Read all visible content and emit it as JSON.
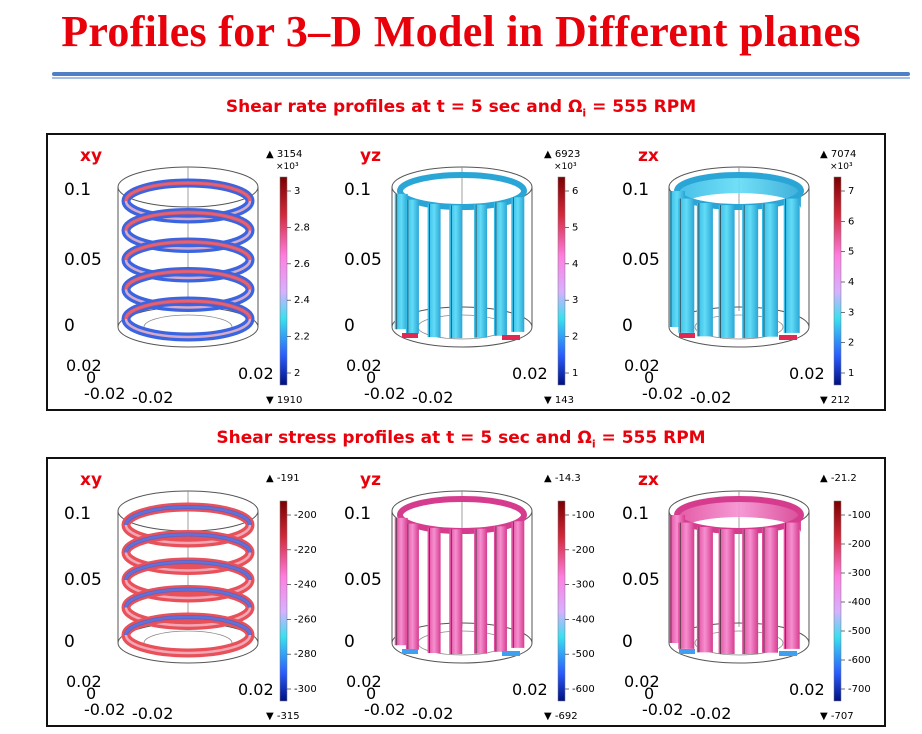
{
  "title": "Profiles for 3–D Model in Different planes",
  "sections": [
    {
      "subtitle_pre": "Shear rate profiles at t = 5 sec and Ω",
      "subtitle_sub": "i",
      "subtitle_post": " = 555 RPM",
      "plots": [
        {
          "plane": "xy",
          "kind": "helix",
          "max": "3154",
          "min": "1910",
          "exp": "×10³",
          "ticks": [
            "3",
            "2.8",
            "2.6",
            "2.4",
            "2.2",
            "2"
          ],
          "z_ticks": [
            "0.1",
            "0.05",
            "0"
          ],
          "xy_ticks": [
            "0.02",
            "0",
            "-0.02",
            "-0.02",
            "0.02"
          ]
        },
        {
          "plane": "yz",
          "kind": "slats",
          "max": "6923",
          "min": "143",
          "exp": "×10³",
          "ticks": [
            "6",
            "5",
            "4",
            "3",
            "2",
            "1"
          ],
          "z_ticks": [
            "0.1",
            "0.05",
            "0"
          ],
          "xy_ticks": [
            "0.02",
            "0",
            "-0.02",
            "-0.02",
            "0.02"
          ]
        },
        {
          "plane": "zx",
          "kind": "slats",
          "max": "7074",
          "min": "212",
          "exp": "×10³",
          "ticks": [
            "7",
            "6",
            "5",
            "4",
            "3",
            "2",
            "1"
          ],
          "z_ticks": [
            "0.1",
            "0.05",
            "0"
          ],
          "xy_ticks": [
            "0.02",
            "0",
            "-0.02",
            "-0.02",
            "0.02"
          ]
        }
      ]
    },
    {
      "subtitle_pre": "Shear stress profiles at t = 5 sec and Ω",
      "subtitle_sub": "i",
      "subtitle_post": " = 555 RPM",
      "plots": [
        {
          "plane": "xy",
          "kind": "helix",
          "max": "-191",
          "min": "-315",
          "exp": "",
          "ticks": [
            "-200",
            "-220",
            "-240",
            "-260",
            "-280",
            "-300"
          ],
          "z_ticks": [
            "0.1",
            "0.05",
            "0"
          ],
          "xy_ticks": [
            "0.02",
            "0",
            "-0.02",
            "-0.02",
            "0.02"
          ]
        },
        {
          "plane": "yz",
          "kind": "slats",
          "max": "-14.3",
          "min": "-692",
          "exp": "",
          "ticks": [
            "-100",
            "-200",
            "-300",
            "-400",
            "-500",
            "-600"
          ],
          "z_ticks": [
            "0.1",
            "0.05",
            "0"
          ],
          "xy_ticks": [
            "0.02",
            "0",
            "-0.02",
            "-0.02",
            "0.02"
          ]
        },
        {
          "plane": "zx",
          "kind": "slats",
          "max": "-21.2",
          "min": "-707",
          "exp": "",
          "ticks": [
            "-100",
            "-200",
            "-300",
            "-400",
            "-500",
            "-600",
            "-700"
          ],
          "z_ticks": [
            "0.1",
            "0.05",
            "0"
          ],
          "xy_ticks": [
            "0.02",
            "0",
            "-0.02",
            "-0.02",
            "0.02"
          ]
        }
      ]
    }
  ],
  "colors": {
    "title_red": "#e8000b",
    "rule_blue": "#4f7fc4",
    "rate_fill": "#3fc6ee",
    "rate_fill_dark": "#1f9ec9",
    "stress_fill": "#e34f9f",
    "stress_fill_light": "#f29ad0",
    "ring_red": "#e8505a",
    "ring_blue": "#3b64e0"
  }
}
